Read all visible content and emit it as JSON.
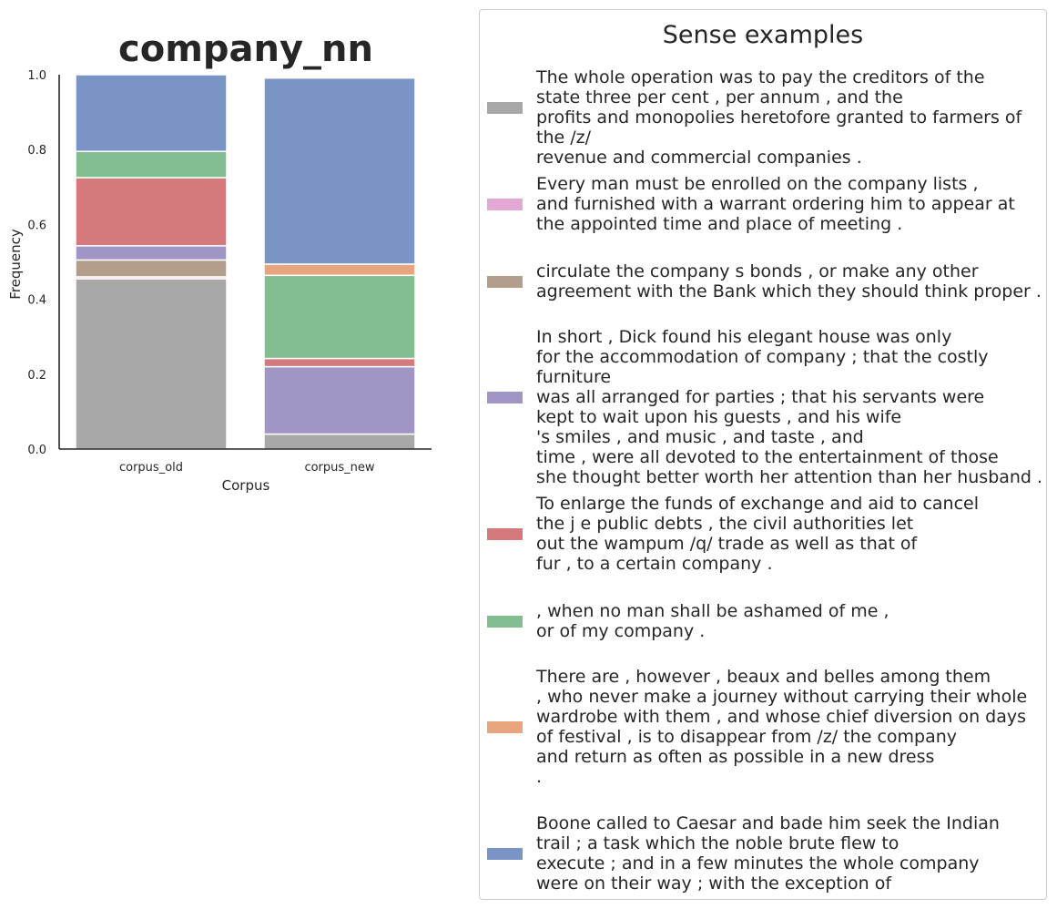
{
  "chart_data": {
    "type": "bar",
    "stacked": true,
    "title": "company_nn",
    "xlabel": "Corpus",
    "ylabel": "Frequency",
    "ylim": [
      0,
      1.0
    ],
    "yticks": [
      "0.0",
      "0.2",
      "0.4",
      "0.6",
      "0.8",
      "1.0"
    ],
    "categories": [
      "corpus_old",
      "corpus_new"
    ],
    "grid": false,
    "legend_position": "right",
    "series": [
      {
        "color": "#a8a8a8",
        "values": [
          0.455,
          0.04
        ]
      },
      {
        "color": "#e3a8d3",
        "values": [
          0.005,
          0.0
        ]
      },
      {
        "color": "#b29e8a",
        "values": [
          0.045,
          0.0
        ]
      },
      {
        "color": "#a095c5",
        "values": [
          0.038,
          0.18
        ]
      },
      {
        "color": "#d57a7c",
        "values": [
          0.182,
          0.022
        ]
      },
      {
        "color": "#82be8f",
        "values": [
          0.07,
          0.222
        ]
      },
      {
        "color": "#e8a47c",
        "values": [
          0.0,
          0.03
        ]
      },
      {
        "color": "#7a95c5",
        "values": [
          0.205,
          0.497
        ]
      }
    ]
  },
  "legend": {
    "title": "Sense examples",
    "entries": [
      {
        "color": "#a8a8a8",
        "text": "The whole operation was to pay the creditors of the\nstate three per cent , per annum , and the\nprofits and monopolies heretofore granted to farmers of the /z/\nrevenue and commercial companies ."
      },
      {
        "color": "#e3a8d3",
        "text": "Every man must be enrolled on the company lists ,\nand furnished with a warrant ordering him to appear at\nthe appointed time and place of meeting ."
      },
      {
        "color": "#b29e8a",
        "text": "circulate the company s bonds , or make any other\nagreement with the Bank which they should think proper ."
      },
      {
        "color": "#a095c5",
        "text": "In short , Dick found his elegant house was only\nfor the accommodation of company ; that the costly furniture\nwas all arranged for parties ; that his servants were\nkept to wait upon his guests , and his wife\n's smiles , and music , and taste , and\ntime , were all devoted to the entertainment of those\nshe thought better worth her attention than her husband ."
      },
      {
        "color": "#d57a7c",
        "text": "To enlarge the funds of exchange and aid to cancel\nthe j e public debts , the civil authorities let\nout the wampum /q/ trade as well as that of\nfur , to a certain company ."
      },
      {
        "color": "#82be8f",
        "text": ", when no man shall be ashamed of me ,\nor of my company ."
      },
      {
        "color": "#e8a47c",
        "text": "There are , however , beaux and belles among them\n, who never make a journey without carrying their whole\nwardrobe with them , and whose chief diversion on days\nof festival , is to disappear from /z/ the company\nand return as often as possible in a new dress\n."
      },
      {
        "color": "#7a95c5",
        "text": "Boone called to Caesar and bade him seek the Indian\ntrail ; a task which the noble brute flew to\nexecute ; and in a few minutes the whole company\nwere on their way ; with the exception of"
      }
    ]
  }
}
